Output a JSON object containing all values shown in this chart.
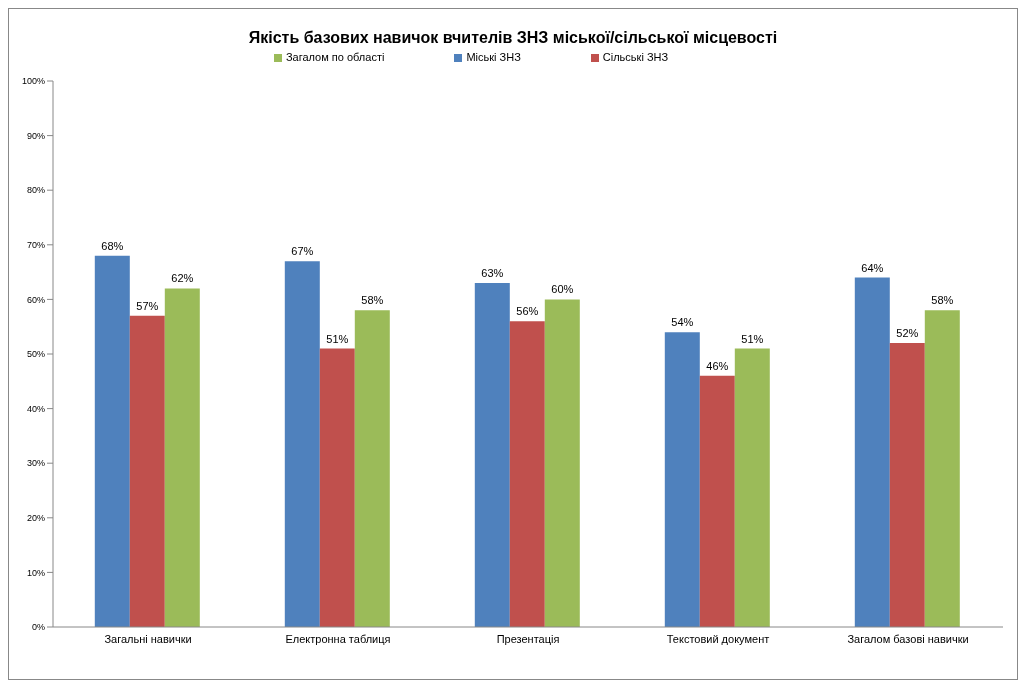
{
  "chart_data": {
    "type": "bar",
    "title": "Якість базових навичок вчителів ЗНЗ міської/сільської місцевості",
    "categories": [
      "Загальні навички",
      "Електронна таблиця",
      "Презентація",
      "Текстовий документ",
      "Загалом базові навички"
    ],
    "series": [
      {
        "name": "Міські ЗНЗ",
        "color": "#4f81bd",
        "values": [
          68,
          67,
          63,
          54,
          64
        ],
        "value_labels": [
          "68%",
          "67%",
          "63%",
          "54%",
          "64%"
        ]
      },
      {
        "name": "Сільські ЗНЗ",
        "color": "#c0504d",
        "values": [
          57,
          51,
          56,
          46,
          52
        ],
        "value_labels": [
          "57%",
          "51%",
          "56%",
          "46%",
          "52%"
        ]
      },
      {
        "name": "Загалом по області",
        "color": "#9bbb59",
        "values": [
          62,
          58,
          60,
          51,
          58
        ],
        "value_labels": [
          "62%",
          "58%",
          "60%",
          "51%",
          "58%"
        ]
      }
    ],
    "ylim": [
      0,
      100
    ],
    "yticks": [
      {
        "value": 0,
        "label": "0%"
      },
      {
        "value": 10,
        "label": "10%"
      },
      {
        "value": 20,
        "label": "20%"
      },
      {
        "value": 30,
        "label": "30%"
      },
      {
        "value": 40,
        "label": "40%"
      },
      {
        "value": 50,
        "label": "50%"
      },
      {
        "value": 60,
        "label": "60%"
      },
      {
        "value": 70,
        "label": "70%"
      },
      {
        "value": 80,
        "label": "80%"
      },
      {
        "value": 90,
        "label": "90%"
      },
      {
        "value": 100,
        "label": "100%"
      }
    ],
    "grid": false,
    "legend": "top"
  }
}
